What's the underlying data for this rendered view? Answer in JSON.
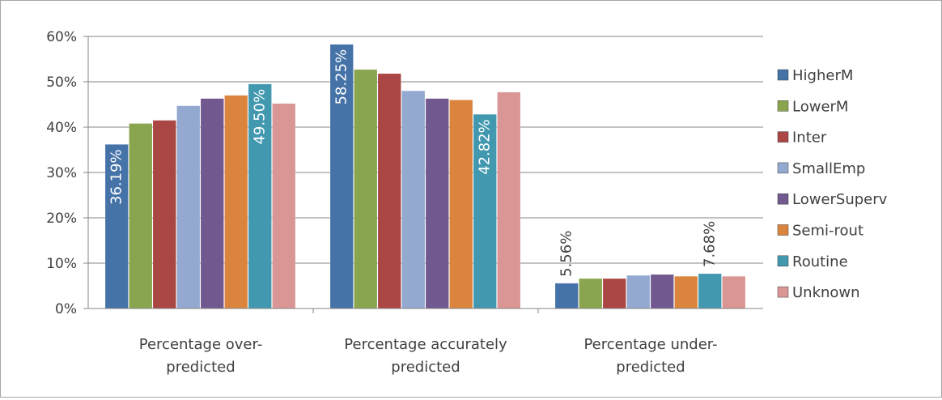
{
  "chart_data": {
    "type": "bar",
    "categories": [
      [
        "Percentage over-",
        "predicted"
      ],
      [
        "Percentage accurately",
        "predicted"
      ],
      [
        "Percentage under-",
        "predicted"
      ]
    ],
    "ylim": [
      0,
      60
    ],
    "yticks": [
      "0%",
      "10%",
      "20%",
      "30%",
      "40%",
      "50%",
      "60%"
    ],
    "grid": true,
    "legend_position": "right",
    "series": [
      {
        "name": "HigherM",
        "color": "#4572A7",
        "values": [
          36.19,
          58.25,
          5.56
        ],
        "labels": [
          "36.19%",
          "58.25%",
          "5.56%"
        ]
      },
      {
        "name": "LowerM",
        "color": "#89A54E",
        "values": [
          40.8,
          52.7,
          6.6
        ],
        "labels": [
          "",
          "",
          ""
        ]
      },
      {
        "name": "Inter",
        "color": "#AA4643",
        "values": [
          41.5,
          51.8,
          6.6
        ],
        "labels": [
          "",
          "",
          ""
        ]
      },
      {
        "name": "SmallEmp",
        "color": "#93A9CF",
        "values": [
          44.7,
          48.0,
          7.3
        ],
        "labels": [
          "",
          "",
          ""
        ]
      },
      {
        "name": "LowerSuperv",
        "color": "#71588F",
        "values": [
          46.3,
          46.3,
          7.5
        ],
        "labels": [
          "",
          "",
          ""
        ]
      },
      {
        "name": "Semi-rout",
        "color": "#DB843D",
        "values": [
          47.0,
          46.0,
          7.1
        ],
        "labels": [
          "",
          "",
          ""
        ]
      },
      {
        "name": "Routine",
        "color": "#4198AF",
        "values": [
          49.5,
          42.82,
          7.68
        ],
        "labels": [
          "49.50%",
          "42.82%",
          "7.68%"
        ]
      },
      {
        "name": "Unknown",
        "color": "#D99694",
        "values": [
          45.2,
          47.7,
          7.1
        ],
        "labels": [
          "",
          "",
          ""
        ]
      }
    ]
  }
}
